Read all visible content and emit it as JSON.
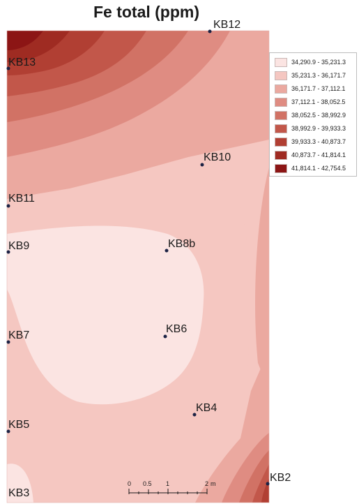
{
  "title": "Fe total (ppm)",
  "legend": [
    {
      "range": "34,290.9 - 35,231.3",
      "color": "#fbe4e2"
    },
    {
      "range": "35,231.3 - 36,171.7",
      "color": "#f5c7c1"
    },
    {
      "range": "36,171.7 - 37,112.1",
      "color": "#eba9a0"
    },
    {
      "range": "37,112.1 - 38,052.5",
      "color": "#df8c82"
    },
    {
      "range": "38,052.5 - 38,992.9",
      "color": "#d17265"
    },
    {
      "range": "38,992.9 - 39,933.3",
      "color": "#c2574a"
    },
    {
      "range": "39,933.3 - 40,873.7",
      "color": "#b13f33"
    },
    {
      "range": "40,873.7 - 41,814.1",
      "color": "#9f2b22"
    },
    {
      "range": "41,814.1 - 42,754.5",
      "color": "#8c1515"
    }
  ],
  "points": [
    {
      "label": "KB12"
    },
    {
      "label": "KB13"
    },
    {
      "label": "KB10"
    },
    {
      "label": "KB11"
    },
    {
      "label": "KB9"
    },
    {
      "label": "KB8b"
    },
    {
      "label": "KB7"
    },
    {
      "label": "KB6"
    },
    {
      "label": "KB4"
    },
    {
      "label": "KB5"
    },
    {
      "label": "KB2"
    },
    {
      "label": "KB3"
    }
  ],
  "scale": {
    "ticks": [
      "0",
      "0.5",
      "1",
      "2"
    ],
    "unit": "m"
  }
}
